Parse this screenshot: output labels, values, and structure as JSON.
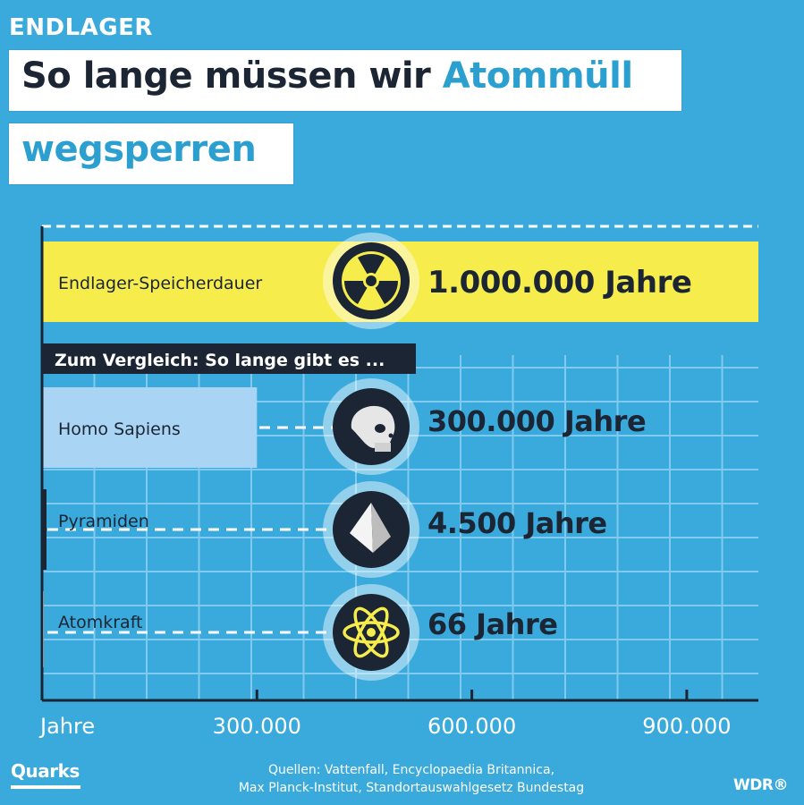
{
  "header": {
    "kicker": "ENDLAGER",
    "title_line1_dark": "So lange müssen wir",
    "title_line1_accent": "Atommüll",
    "title_line2_accent": "wegsperren"
  },
  "chart_data": {
    "type": "bar",
    "orientation": "horizontal",
    "unit": "Jahre",
    "xlim": [
      0,
      1000000
    ],
    "x_ticks": [
      {
        "value": 0,
        "label": "Jahre"
      },
      {
        "value": 300000,
        "label": "300.000"
      },
      {
        "value": 600000,
        "label": "600.000"
      },
      {
        "value": 900000,
        "label": "900.000"
      }
    ],
    "grid": true,
    "section_label": "Zum Vergleich: So lange gibt es ...",
    "bars": [
      {
        "category": "Endlager-Speicherdauer",
        "value": 1000000,
        "value_label": "1.000.000 Jahre",
        "icon": "radiation-icon",
        "color": "#f6ed4d"
      },
      {
        "category": "Homo Sapiens",
        "value": 300000,
        "value_label": "300.000 Jahre",
        "icon": "skull-icon",
        "color": "#a9d4f3"
      },
      {
        "category": "Pyramiden",
        "value": 4500,
        "value_label": "4.500 Jahre",
        "icon": "pyramid-icon",
        "color": "#1b2533"
      },
      {
        "category": "Atomkraft",
        "value": 66,
        "value_label": "66 Jahre",
        "icon": "atom-icon",
        "color": "#1b2533"
      }
    ]
  },
  "footer": {
    "sources_line1": "Quellen: Vattenfall, Encyclopaedia Britannica,",
    "sources_line2": "Max Planck-Institut, Standortauswahlgesetz Bundestag",
    "logo_left": "Quarks",
    "logo_right": "WDR®"
  },
  "colors": {
    "background": "#3aa9dc",
    "dark": "#1b2533",
    "highlight": "#f6ed4d",
    "light_bar": "#a9d4f3",
    "grid": "#7fcaee",
    "white": "#ffffff"
  }
}
